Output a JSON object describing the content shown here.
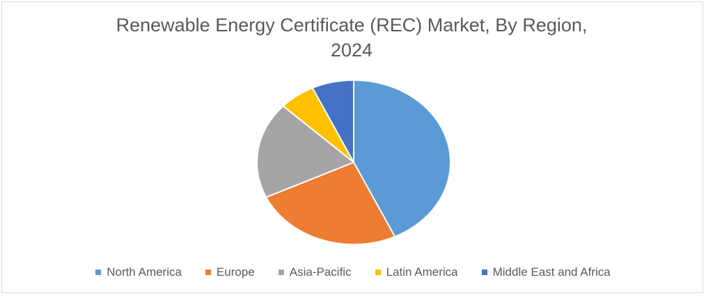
{
  "chart_data": {
    "type": "pie",
    "title_lines": [
      "Renewable Energy Certificate (REC) Market, By Region,",
      "2024"
    ],
    "legend_position": "bottom",
    "slices": [
      {
        "label": "North America",
        "value": 43,
        "color": "#5b9bd5"
      },
      {
        "label": "Europe",
        "value": 25,
        "color": "#ed7d31"
      },
      {
        "label": "Asia-Pacific",
        "value": 19,
        "color": "#a5a5a5"
      },
      {
        "label": "Latin America",
        "value": 6,
        "color": "#ffc000"
      },
      {
        "label": "Middle East and Africa",
        "value": 7,
        "color": "#4472c4"
      }
    ]
  }
}
